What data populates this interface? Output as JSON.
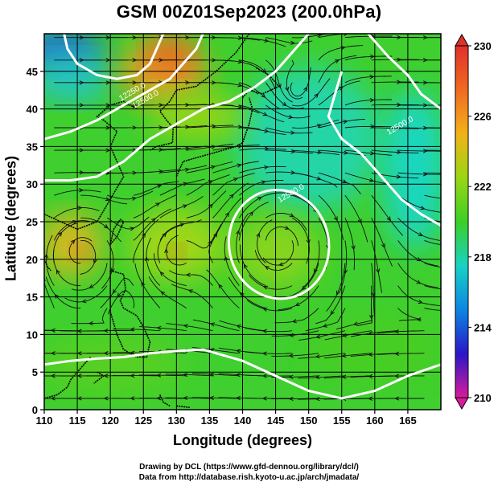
{
  "title": "GSM 00Z01Sep2023 (200.0hPa)",
  "credits": {
    "line1": "Drawing by DCL (https://www.gfd-dennou.org/library/dcl/)",
    "line2": "Data from http://database.rish.kyoto-u.ac.jp/arch/jmadata/"
  },
  "chart_data": {
    "type": "heatmap",
    "xlabel": "Longitude (degrees)",
    "ylabel": "Latitude  (degrees)",
    "xlim": [
      110,
      170
    ],
    "ylim": [
      0,
      50
    ],
    "x_ticks": [
      110,
      115,
      120,
      125,
      130,
      135,
      140,
      145,
      150,
      155,
      160,
      165
    ],
    "y_ticks": [
      0,
      5,
      10,
      15,
      20,
      25,
      30,
      35,
      40,
      45
    ],
    "colorbar": {
      "min": 210,
      "max": 230,
      "labels": [
        210,
        214,
        218,
        222,
        226,
        230
      ],
      "colors": [
        "#d81b9a",
        "#2a16c8",
        "#0c86e2",
        "#18d2c4",
        "#3ccf26",
        "#9ad614",
        "#f2b21a",
        "#f06a22",
        "#e0302a"
      ]
    },
    "contour_labels": [
      {
        "text": "12250.0",
        "lon": 123.5,
        "lat": 42.0
      },
      {
        "text": "12500.0",
        "lon": 147.5,
        "lat": 28.5
      },
      {
        "text": "12500.0",
        "lon": 164.0,
        "lat": 37.5
      },
      {
        "text": "12500.0",
        "lon": 125.5,
        "lat": 41.0
      }
    ],
    "highs": [
      {
        "lon": 145.5,
        "lat": 22.0
      },
      {
        "lon": 130.0,
        "lat": 21.0
      },
      {
        "lon": 115.5,
        "lat": 21.0
      }
    ]
  }
}
